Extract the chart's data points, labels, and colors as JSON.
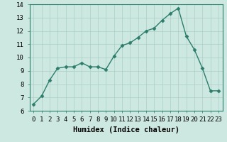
{
  "x": [
    0,
    1,
    2,
    3,
    4,
    5,
    6,
    7,
    8,
    9,
    10,
    11,
    12,
    13,
    14,
    15,
    16,
    17,
    18,
    19,
    20,
    21,
    22,
    23
  ],
  "y": [
    6.5,
    7.1,
    8.3,
    9.2,
    9.3,
    9.3,
    9.6,
    9.3,
    9.3,
    9.1,
    10.1,
    10.9,
    11.1,
    11.5,
    12.0,
    12.2,
    12.8,
    13.3,
    13.7,
    11.6,
    10.6,
    9.2,
    7.5,
    7.5
  ],
  "line_color": "#2d7d6b",
  "marker": "D",
  "markersize": 2.5,
  "linewidth": 1.0,
  "bg_color": "#cce8e0",
  "grid_color": "#aacfc5",
  "xlabel": "Humidex (Indice chaleur)",
  "ylim": [
    6,
    14
  ],
  "xlim": [
    -0.5,
    23.5
  ],
  "yticks": [
    6,
    7,
    8,
    9,
    10,
    11,
    12,
    13,
    14
  ],
  "xticks": [
    0,
    1,
    2,
    3,
    4,
    5,
    6,
    7,
    8,
    9,
    10,
    11,
    12,
    13,
    14,
    15,
    16,
    17,
    18,
    19,
    20,
    21,
    22,
    23
  ],
  "xlabel_fontsize": 7.5,
  "tick_fontsize": 6.5
}
